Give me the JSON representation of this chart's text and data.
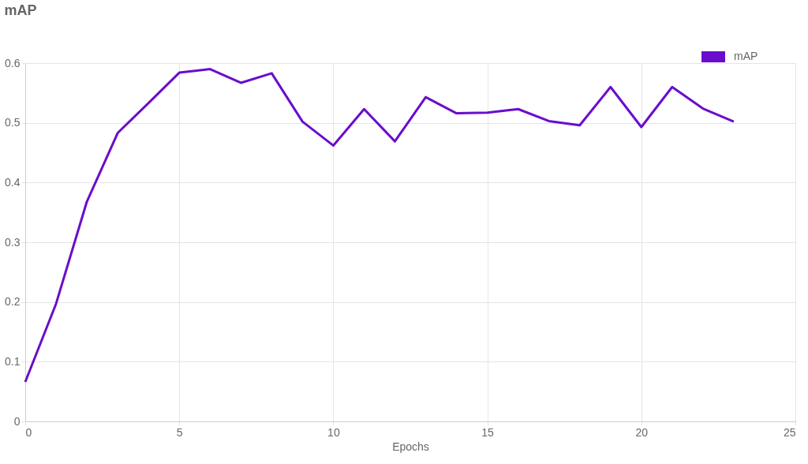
{
  "chart_data": {
    "type": "line",
    "title": "mAP",
    "xlabel": "Epochs",
    "x": [
      0,
      1,
      2,
      3,
      4,
      5,
      6,
      7,
      8,
      9,
      10,
      11,
      12,
      13,
      14,
      15,
      16,
      17,
      18,
      19,
      20,
      21,
      22,
      23
    ],
    "series": [
      {
        "name": "mAP",
        "color": "#6a0dcc",
        "values": [
          0.066,
          0.197,
          0.368,
          0.483,
          0.533,
          0.584,
          0.59,
          0.567,
          0.583,
          0.502,
          0.462,
          0.523,
          0.469,
          0.543,
          0.516,
          0.517,
          0.523,
          0.503,
          0.496,
          0.56,
          0.493,
          0.56,
          0.524,
          0.502
        ]
      }
    ],
    "xlim": [
      0,
      25
    ],
    "xticks": [
      0,
      5,
      10,
      15,
      20,
      25
    ],
    "ylim": [
      0,
      0.6
    ],
    "yticks": [
      0,
      0.1,
      0.2,
      0.3,
      0.4,
      0.5,
      0.6
    ],
    "grid": true,
    "legend": "top right",
    "marker": "none",
    "line_style": "solid"
  }
}
